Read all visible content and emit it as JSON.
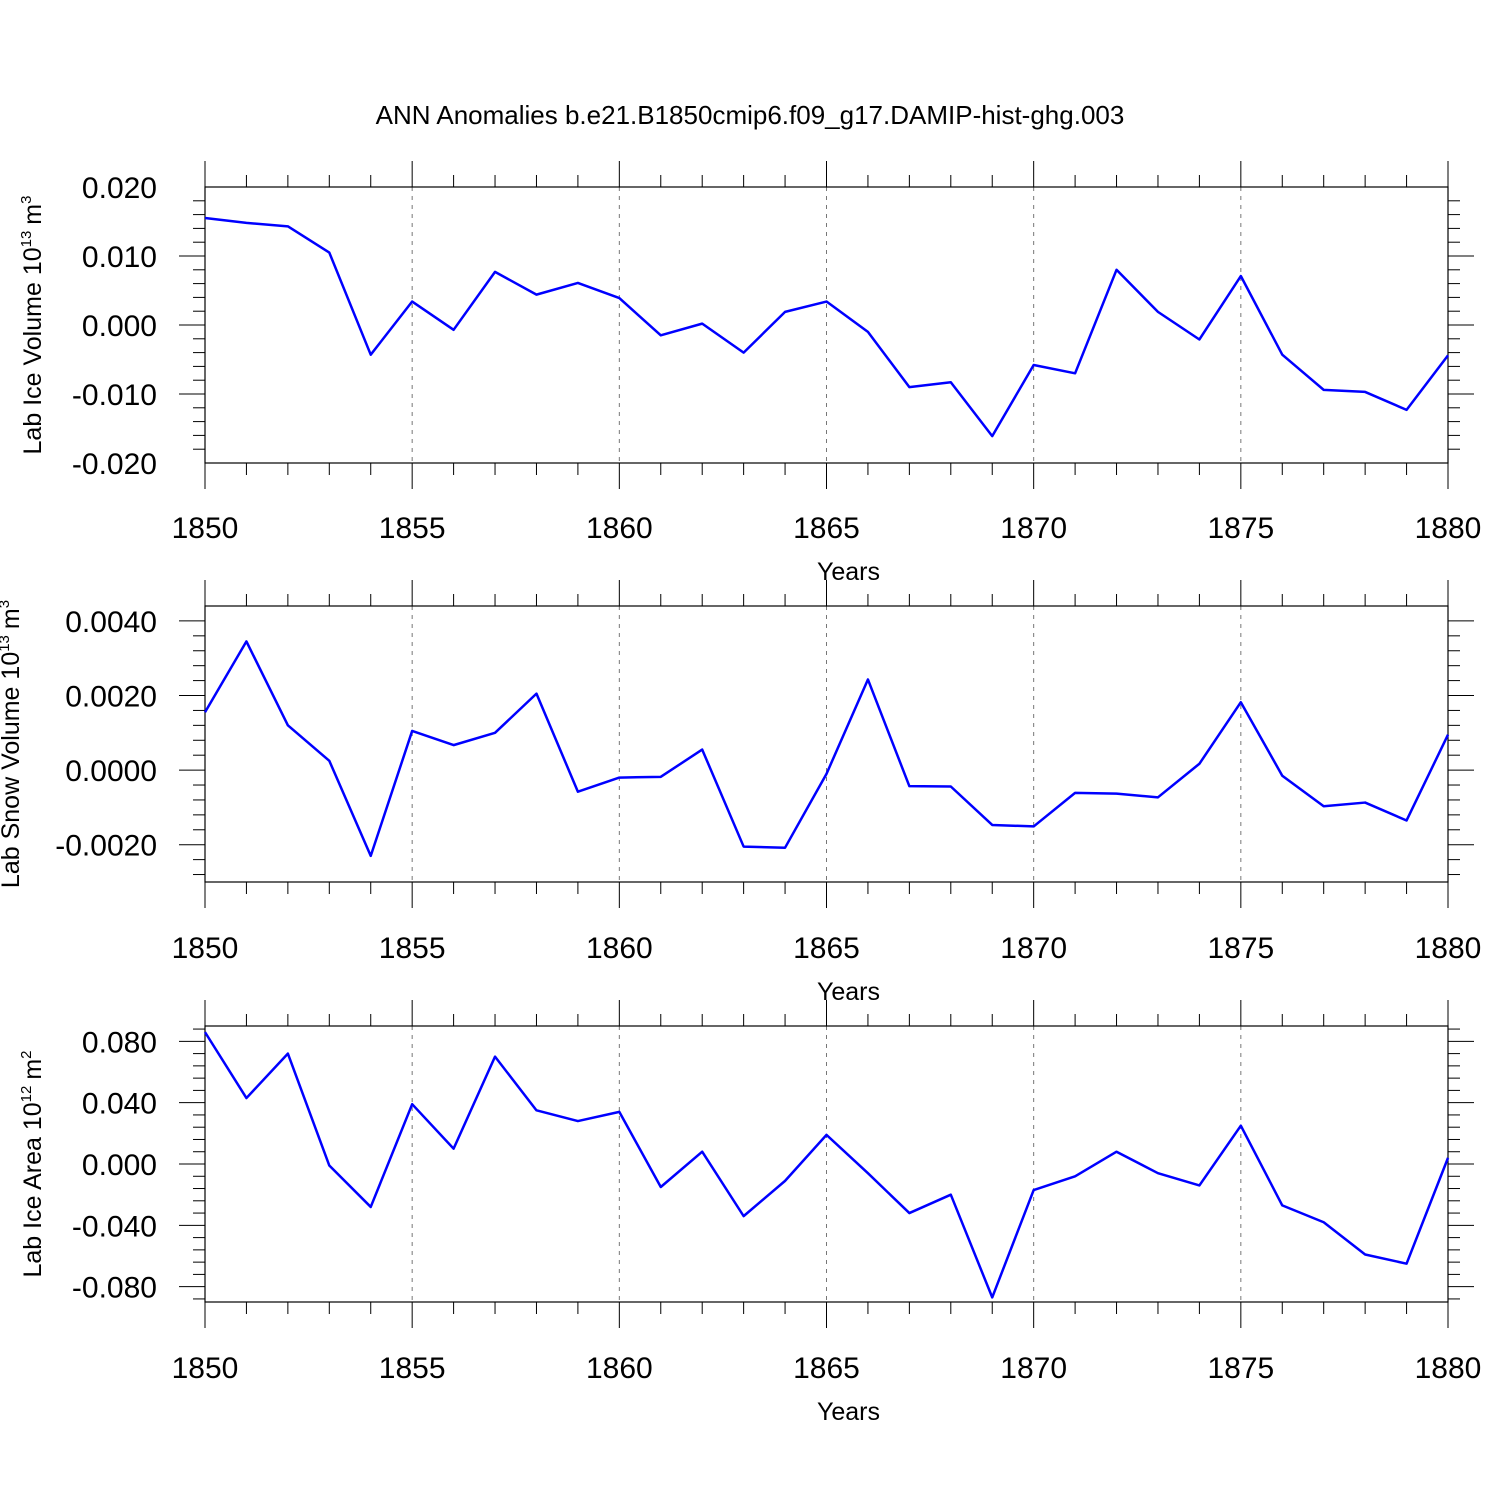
{
  "title": "ANN Anomalies b.e21.B1850cmip6.f09_g17.DAMIP-hist-ghg.003",
  "line_color": "#0000ff",
  "chart_data": [
    {
      "type": "line",
      "ylabel": "Lab Ice Volume 10",
      "ylabel_exp": "13",
      "ylabel_unit": "m",
      "ylabel_unit_exp": "3",
      "xlabel": "Years",
      "xlim": [
        1850,
        1880
      ],
      "ylim": [
        -0.02,
        0.02
      ],
      "x_ticks": [
        1850,
        1855,
        1860,
        1865,
        1870,
        1875,
        1880
      ],
      "y_ticks": [
        -0.02,
        -0.01,
        0.0,
        0.01,
        0.02
      ],
      "y_tick_labels": [
        "-0.020",
        "-0.010",
        "0.000",
        "0.010",
        "0.020"
      ],
      "grid": "vertical dashed at major x ticks",
      "x": [
        1850,
        1851,
        1852,
        1853,
        1854,
        1855,
        1856,
        1857,
        1858,
        1859,
        1860,
        1861,
        1862,
        1863,
        1864,
        1865,
        1866,
        1867,
        1868,
        1869,
        1870,
        1871,
        1872,
        1873,
        1874,
        1875,
        1876,
        1877,
        1878,
        1879,
        1880
      ],
      "values": [
        0.0155,
        0.0148,
        0.0143,
        0.0105,
        -0.0043,
        0.0034,
        -0.0007,
        0.0077,
        0.0044,
        0.0061,
        0.0039,
        -0.0015,
        0.0002,
        -0.004,
        0.0019,
        0.0034,
        -0.001,
        -0.009,
        -0.0083,
        -0.0161,
        -0.0058,
        -0.007,
        0.008,
        0.0019,
        -0.0021,
        0.0071,
        -0.0043,
        -0.0094,
        -0.0097,
        -0.0123,
        -0.0044
      ]
    },
    {
      "type": "line",
      "ylabel": "Lab Snow Volume 10",
      "ylabel_exp": "13",
      "ylabel_unit": "m",
      "ylabel_unit_exp": "3",
      "xlabel": "Years",
      "xlim": [
        1850,
        1880
      ],
      "ylim": [
        -0.003,
        0.0044
      ],
      "x_ticks": [
        1850,
        1855,
        1860,
        1865,
        1870,
        1875,
        1880
      ],
      "y_ticks": [
        -0.002,
        0.0,
        0.002,
        0.004
      ],
      "y_tick_labels": [
        "-0.0020",
        "0.0000",
        "0.0020",
        "0.0040"
      ],
      "grid": "vertical dashed at major x ticks",
      "x": [
        1850,
        1851,
        1852,
        1853,
        1854,
        1855,
        1856,
        1857,
        1858,
        1859,
        1860,
        1861,
        1862,
        1863,
        1864,
        1865,
        1866,
        1867,
        1868,
        1869,
        1870,
        1871,
        1872,
        1873,
        1874,
        1875,
        1876,
        1877,
        1878,
        1879,
        1880
      ],
      "values": [
        0.00155,
        0.00345,
        0.0012,
        0.00025,
        -0.0023,
        0.00105,
        0.00067,
        0.001,
        0.00205,
        -0.00058,
        -0.0002,
        -0.00018,
        0.00055,
        -0.00205,
        -0.00208,
        -0.0001,
        0.00243,
        -0.00043,
        -0.00044,
        -0.00147,
        -0.00151,
        -0.00061,
        -0.00063,
        -0.00073,
        0.00017,
        0.00182,
        -0.00015,
        -0.00097,
        -0.00087,
        -0.00135,
        0.00095
      ]
    },
    {
      "type": "line",
      "ylabel": "Lab Ice Area 10",
      "ylabel_exp": "12",
      "ylabel_unit": "m",
      "ylabel_unit_exp": "2",
      "xlabel": "Years",
      "xlim": [
        1850,
        1880
      ],
      "ylim": [
        -0.09,
        0.09
      ],
      "x_ticks": [
        1850,
        1855,
        1860,
        1865,
        1870,
        1875,
        1880
      ],
      "y_ticks": [
        -0.08,
        -0.04,
        0.0,
        0.04,
        0.08
      ],
      "y_tick_labels": [
        "-0.080",
        "-0.040",
        "0.000",
        "0.040",
        "0.080"
      ],
      "grid": "vertical dashed at major x ticks",
      "x": [
        1850,
        1851,
        1852,
        1853,
        1854,
        1855,
        1856,
        1857,
        1858,
        1859,
        1860,
        1861,
        1862,
        1863,
        1864,
        1865,
        1866,
        1867,
        1868,
        1869,
        1870,
        1871,
        1872,
        1873,
        1874,
        1875,
        1876,
        1877,
        1878,
        1879,
        1880
      ],
      "values": [
        0.086,
        0.043,
        0.072,
        -0.001,
        -0.028,
        0.039,
        0.01,
        0.07,
        0.035,
        0.028,
        0.034,
        -0.015,
        0.008,
        -0.034,
        -0.011,
        0.019,
        -0.006,
        -0.032,
        -0.02,
        -0.087,
        -0.017,
        -0.008,
        0.008,
        -0.006,
        -0.014,
        0.025,
        -0.027,
        -0.038,
        -0.059,
        -0.065,
        0.004
      ]
    }
  ]
}
